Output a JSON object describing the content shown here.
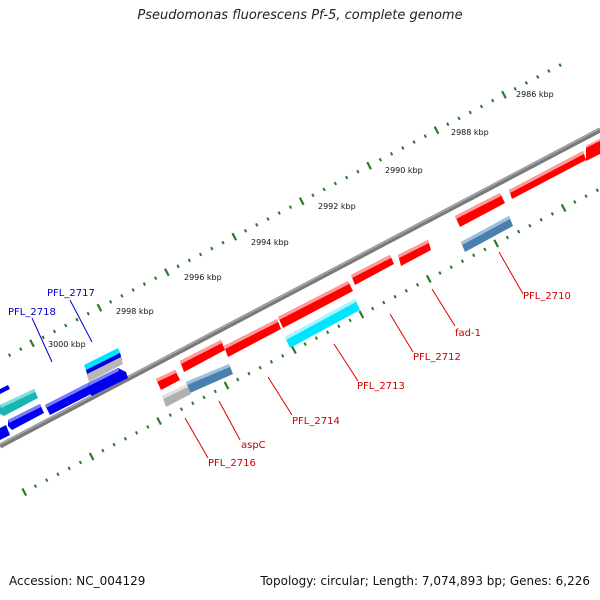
{
  "title": "Pseudomonas fluorescens Pf-5, complete genome",
  "footer": {
    "accession": "Accession: NC_004129",
    "summary": "Topology: circular; Length: 7,074,893 bp; Genes: 6,226"
  },
  "colors": {
    "backbone": "#808080",
    "tick": "#2a7a2a",
    "forward_gene": "#ff0000",
    "reverse_gene": "#0000ee",
    "cyan_gene": "#00e5ff",
    "steel_gene": "#4a7fb0",
    "grey_gene": "#b8b8b8",
    "teal_gene": "#19b5b5",
    "label_red": "#cc0000",
    "label_blue": "#0000cc"
  },
  "scale_labels": [
    {
      "text": "2986 kbp"
    },
    {
      "text": "2988 kbp"
    },
    {
      "text": "2990 kbp"
    },
    {
      "text": "2992 kbp"
    },
    {
      "text": "2994 kbp"
    },
    {
      "text": "2996 kbp"
    },
    {
      "text": "2998 kbp"
    },
    {
      "text": "3000 kbp"
    }
  ],
  "gene_labels": [
    {
      "text": "PFL_2710",
      "color": "red"
    },
    {
      "text": "fad-1",
      "color": "red"
    },
    {
      "text": "PFL_2712",
      "color": "red"
    },
    {
      "text": "PFL_2713",
      "color": "red"
    },
    {
      "text": "PFL_2714",
      "color": "red"
    },
    {
      "text": "aspC",
      "color": "red"
    },
    {
      "text": "PFL_2716",
      "color": "red"
    },
    {
      "text": "PFL_2717",
      "color": "blue"
    },
    {
      "text": "PFL_2718",
      "color": "blue"
    }
  ]
}
